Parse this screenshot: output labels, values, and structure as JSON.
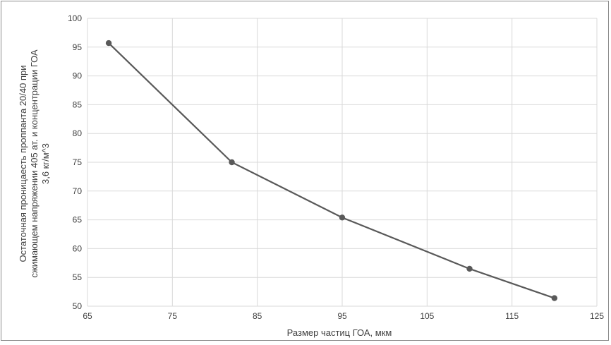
{
  "chart_data": {
    "type": "line",
    "title": "",
    "xlabel": "Размер частиц ГОА, мкм",
    "ylabel_lines": [
      "Остаточная проницаесть проппанта 20/40  при",
      "сжимающем напряжении 405 ат. и концентрации ГОА",
      "3,6 кг/м^3"
    ],
    "xlim": [
      65,
      125
    ],
    "ylim": [
      50,
      100
    ],
    "xticks": [
      65,
      75,
      85,
      95,
      105,
      115,
      125
    ],
    "yticks": [
      50,
      55,
      60,
      65,
      70,
      75,
      80,
      85,
      90,
      95,
      100
    ],
    "grid": true,
    "legend": "none",
    "series": [
      {
        "color": "#595959",
        "points": [
          {
            "x": 67.5,
            "y": 95.7
          },
          {
            "x": 82,
            "y": 75
          },
          {
            "x": 95,
            "y": 65.4
          },
          {
            "x": 110,
            "y": 56.5
          },
          {
            "x": 120,
            "y": 51.4
          }
        ]
      }
    ],
    "gridColor": "#d9d9d9"
  }
}
